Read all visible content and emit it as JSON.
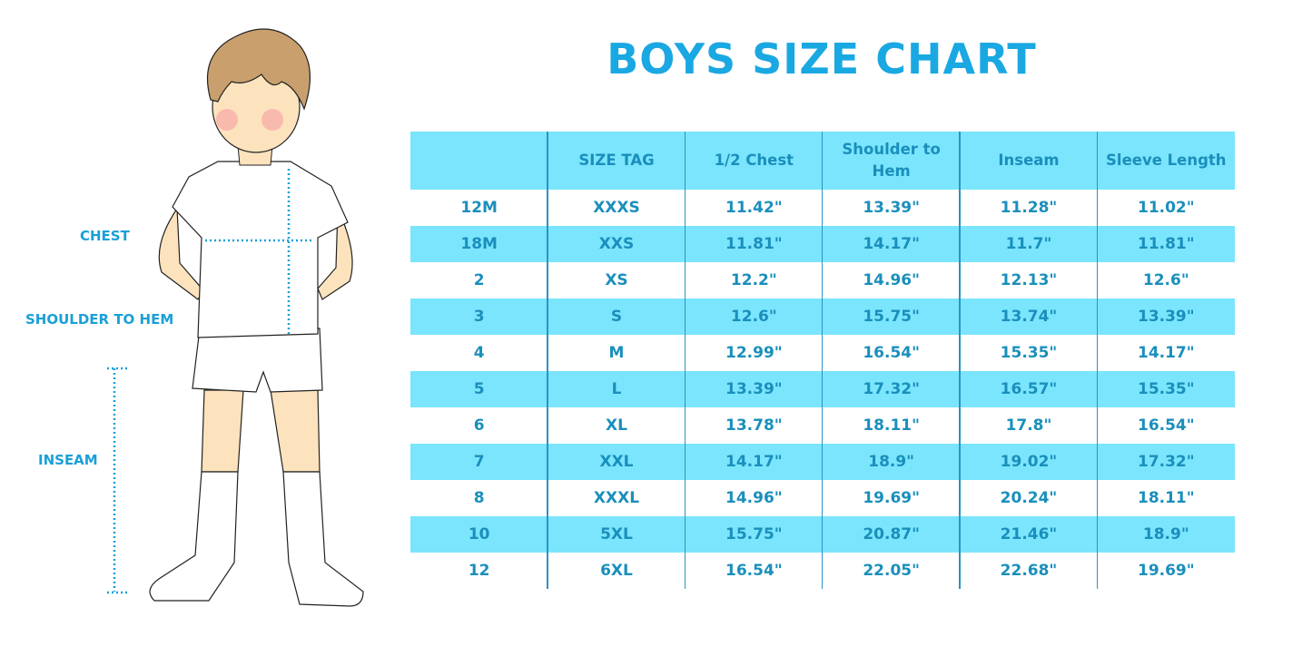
{
  "title": "BOYS SIZE CHART",
  "labels": {
    "chest": "CHEST",
    "shoulder_to_hem": "SHOULDER TO HEM",
    "inseam": "INSEAM"
  },
  "colors": {
    "title": "#1aa8e2",
    "stripe": "#7ae5fc",
    "text": "#1a8fbc"
  },
  "chart_data": {
    "type": "table",
    "title": "BOYS SIZE CHART",
    "columns": [
      "",
      "SIZE TAG",
      "1/2 Chest",
      "Shoulder to Hem",
      "Inseam",
      "Sleeve Length"
    ],
    "rows": [
      [
        "12M",
        "XXXS",
        "11.42\"",
        "13.39\"",
        "11.28\"",
        "11.02\""
      ],
      [
        "18M",
        "XXS",
        "11.81\"",
        "14.17\"",
        "11.7\"",
        "11.81\""
      ],
      [
        "2",
        "XS",
        "12.2\"",
        "14.96\"",
        "12.13\"",
        "12.6\""
      ],
      [
        "3",
        "S",
        "12.6\"",
        "15.75\"",
        "13.74\"",
        "13.39\""
      ],
      [
        "4",
        "M",
        "12.99\"",
        "16.54\"",
        "15.35\"",
        "14.17\""
      ],
      [
        "5",
        "L",
        "13.39\"",
        "17.32\"",
        "16.57\"",
        "15.35\""
      ],
      [
        "6",
        "XL",
        "13.78\"",
        "18.11\"",
        "17.8\"",
        "16.54\""
      ],
      [
        "7",
        "XXL",
        "14.17\"",
        "18.9\"",
        "19.02\"",
        "17.32\""
      ],
      [
        "8",
        "XXXL",
        "14.96\"",
        "19.69\"",
        "20.24\"",
        "18.11\""
      ],
      [
        "10",
        "5XL",
        "15.75\"",
        "20.87\"",
        "21.46\"",
        "18.9\""
      ],
      [
        "12",
        "6XL",
        "16.54\"",
        "22.05\"",
        "22.68\"",
        "19.69\""
      ]
    ]
  }
}
